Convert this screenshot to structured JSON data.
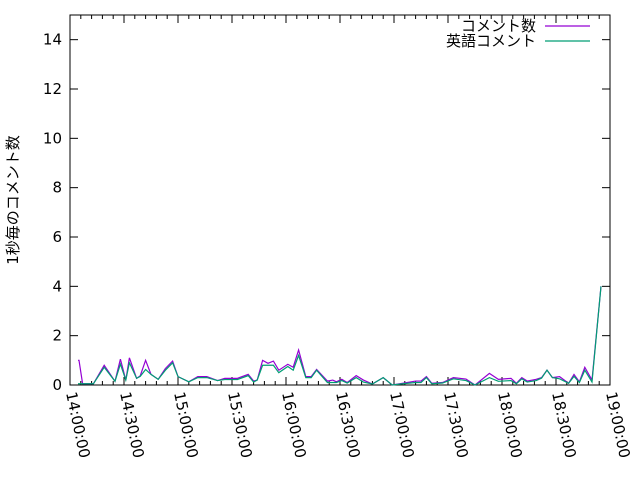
{
  "chart_data": {
    "type": "line",
    "title": "",
    "xlabel": "",
    "ylabel": "1秒毎のコメント数",
    "xlim": [
      "14:00:00",
      "19:00:00"
    ],
    "ylim": [
      0,
      15
    ],
    "x_ticks": [
      "14:00:00",
      "14:30:00",
      "15:00:00",
      "15:30:00",
      "16:00:00",
      "16:30:00",
      "17:00:00",
      "17:30:00",
      "18:00:00",
      "18:30:00",
      "19:00:00"
    ],
    "y_ticks": [
      0,
      2,
      4,
      6,
      8,
      10,
      12,
      14
    ],
    "grid": false,
    "legend_position": "top-right",
    "x": [
      "14:05",
      "14:07",
      "14:13",
      "14:19",
      "14:25",
      "14:28",
      "14:31",
      "14:33",
      "14:37",
      "14:39",
      "14:42",
      "14:45",
      "14:49",
      "14:53",
      "14:57",
      "15:00",
      "15:06",
      "15:11",
      "15:16",
      "15:22",
      "15:26",
      "15:33",
      "15:39",
      "15:42",
      "15:44",
      "15:47",
      "15:50",
      "15:53",
      "15:56",
      "16:01",
      "16:04",
      "16:07",
      "16:11",
      "16:14",
      "16:17",
      "16:23",
      "16:26",
      "16:28",
      "16:31",
      "16:34",
      "16:39",
      "16:43",
      "16:48",
      "16:54",
      "16:59",
      "17:05",
      "17:12",
      "17:15",
      "17:18",
      "17:21",
      "17:27",
      "17:33",
      "17:40",
      "17:45",
      "17:53",
      "17:58",
      "18:05",
      "18:08",
      "18:11",
      "18:14",
      "18:19",
      "18:22",
      "18:25",
      "18:28",
      "18:32",
      "18:37",
      "18:40",
      "18:43",
      "18:46",
      "18:50",
      "18:55"
    ],
    "series": [
      {
        "name": "コメント数",
        "color": "#9400D3",
        "values": [
          1.0,
          0.05,
          0.05,
          0.8,
          0.15,
          1.05,
          0.2,
          1.1,
          0.27,
          0.37,
          1.0,
          0.43,
          0.23,
          0.67,
          0.97,
          0.34,
          0.13,
          0.34,
          0.34,
          0.18,
          0.27,
          0.27,
          0.43,
          0.16,
          0.2,
          1.0,
          0.88,
          0.97,
          0.6,
          0.84,
          0.72,
          1.42,
          0.34,
          0.34,
          0.63,
          0.16,
          0.2,
          0.13,
          0.23,
          0.1,
          0.38,
          0.2,
          0.04,
          0.3,
          0.0,
          0.07,
          0.16,
          0.16,
          0.34,
          0.07,
          0.1,
          0.3,
          0.24,
          0.0,
          0.47,
          0.23,
          0.27,
          0.07,
          0.3,
          0.16,
          0.23,
          0.3,
          0.6,
          0.3,
          0.34,
          0.07,
          0.43,
          0.13,
          0.72,
          0.2,
          4.0
        ]
      },
      {
        "name": "英語コメント",
        "color": "#009E73",
        "values": [
          0.05,
          0.05,
          0.05,
          0.72,
          0.15,
          0.85,
          0.2,
          0.9,
          0.27,
          0.35,
          0.63,
          0.43,
          0.23,
          0.6,
          0.9,
          0.34,
          0.13,
          0.3,
          0.3,
          0.18,
          0.22,
          0.22,
          0.38,
          0.12,
          0.2,
          0.8,
          0.8,
          0.8,
          0.5,
          0.75,
          0.6,
          1.2,
          0.3,
          0.3,
          0.6,
          0.1,
          0.1,
          0.1,
          0.18,
          0.08,
          0.3,
          0.12,
          0.04,
          0.3,
          0.0,
          0.05,
          0.1,
          0.1,
          0.3,
          0.05,
          0.08,
          0.25,
          0.18,
          0.0,
          0.3,
          0.15,
          0.18,
          0.05,
          0.25,
          0.12,
          0.18,
          0.28,
          0.6,
          0.3,
          0.25,
          0.07,
          0.35,
          0.1,
          0.6,
          0.12,
          4.0
        ]
      }
    ]
  }
}
